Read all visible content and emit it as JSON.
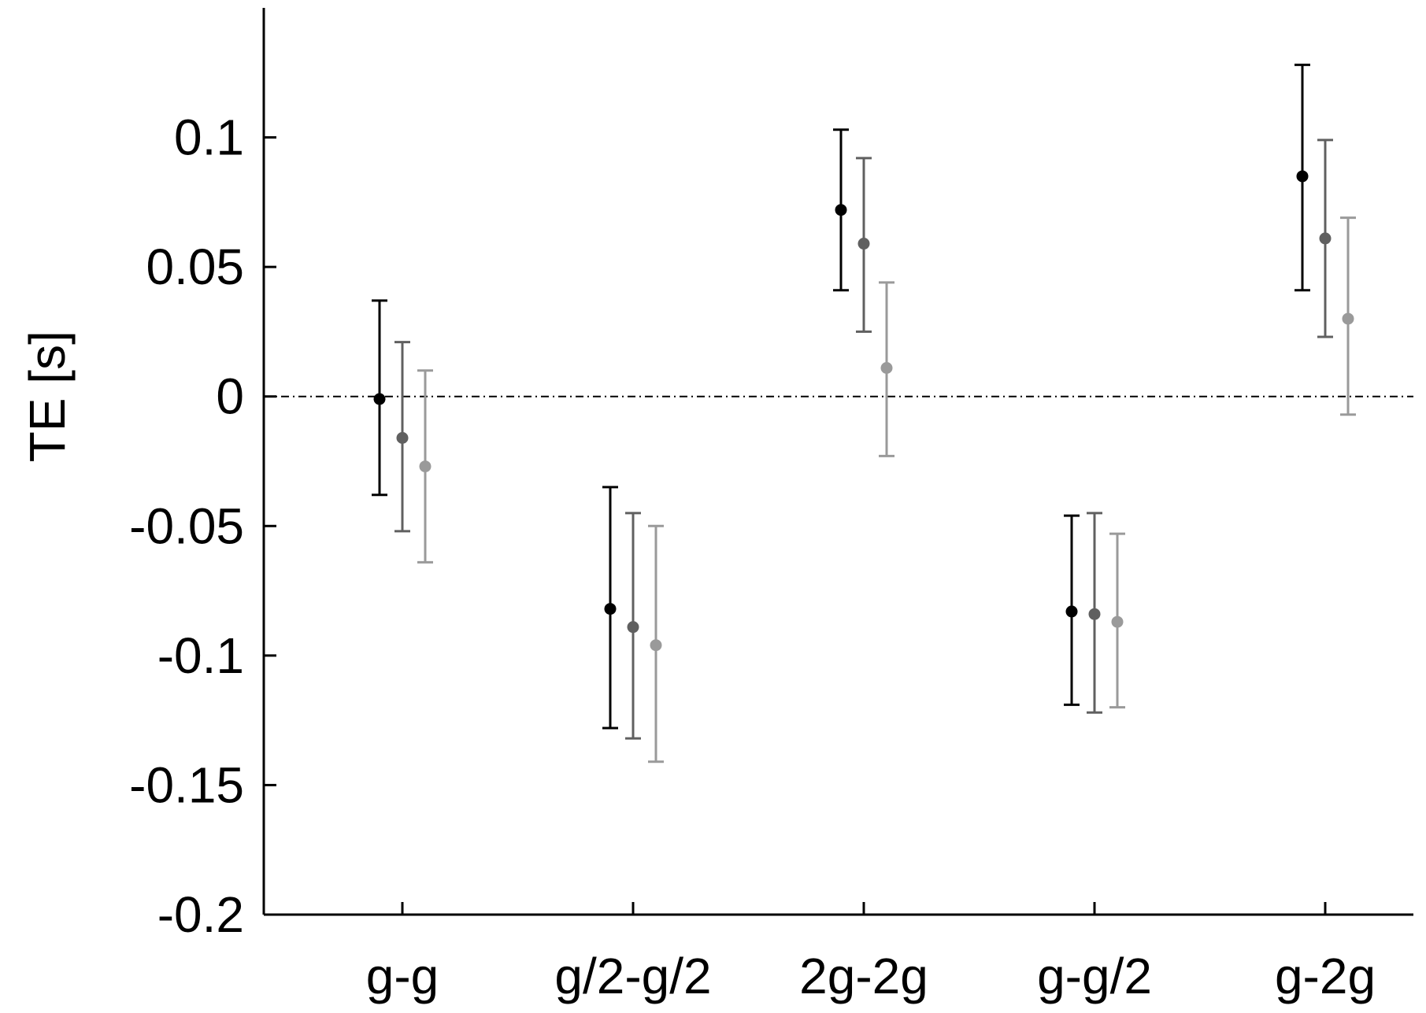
{
  "chart_data": {
    "type": "scatter",
    "subtype": "dot-with-error-bars",
    "title": "",
    "xlabel": "",
    "ylabel": "TE [s]",
    "ylim": [
      -0.2,
      0.15
    ],
    "yticks": [
      -0.2,
      -0.15,
      -0.1,
      -0.05,
      0,
      0.05,
      0.1
    ],
    "ytick_labels": [
      "-0.2",
      "-0.15",
      "-0.1",
      "-0.05",
      "0",
      "0.05",
      "0.1"
    ],
    "categories": [
      "g-g",
      "g/2-g/2",
      "2g-2g",
      "g-g/2",
      "g-2g"
    ],
    "grid": false,
    "legend": "none",
    "reference_line": {
      "y": 0,
      "style": "dash-dot"
    },
    "series": [
      {
        "color": "#000000",
        "values": [
          -0.001,
          -0.082,
          0.072,
          -0.083,
          0.085
        ],
        "lower": [
          -0.038,
          -0.128,
          0.041,
          -0.119,
          0.041
        ],
        "upper": [
          0.037,
          -0.035,
          0.103,
          -0.046,
          0.128
        ]
      },
      {
        "color": "#606060",
        "values": [
          -0.016,
          -0.089,
          0.059,
          -0.084,
          0.061
        ],
        "lower": [
          -0.052,
          -0.132,
          0.025,
          -0.122,
          0.023
        ],
        "upper": [
          0.021,
          -0.045,
          0.092,
          -0.045,
          0.099
        ]
      },
      {
        "color": "#9a9a9a",
        "values": [
          -0.027,
          -0.096,
          0.011,
          -0.087,
          0.03
        ],
        "lower": [
          -0.064,
          -0.141,
          -0.023,
          -0.12,
          -0.007
        ],
        "upper": [
          0.01,
          -0.05,
          0.044,
          -0.053,
          0.069
        ]
      }
    ]
  }
}
